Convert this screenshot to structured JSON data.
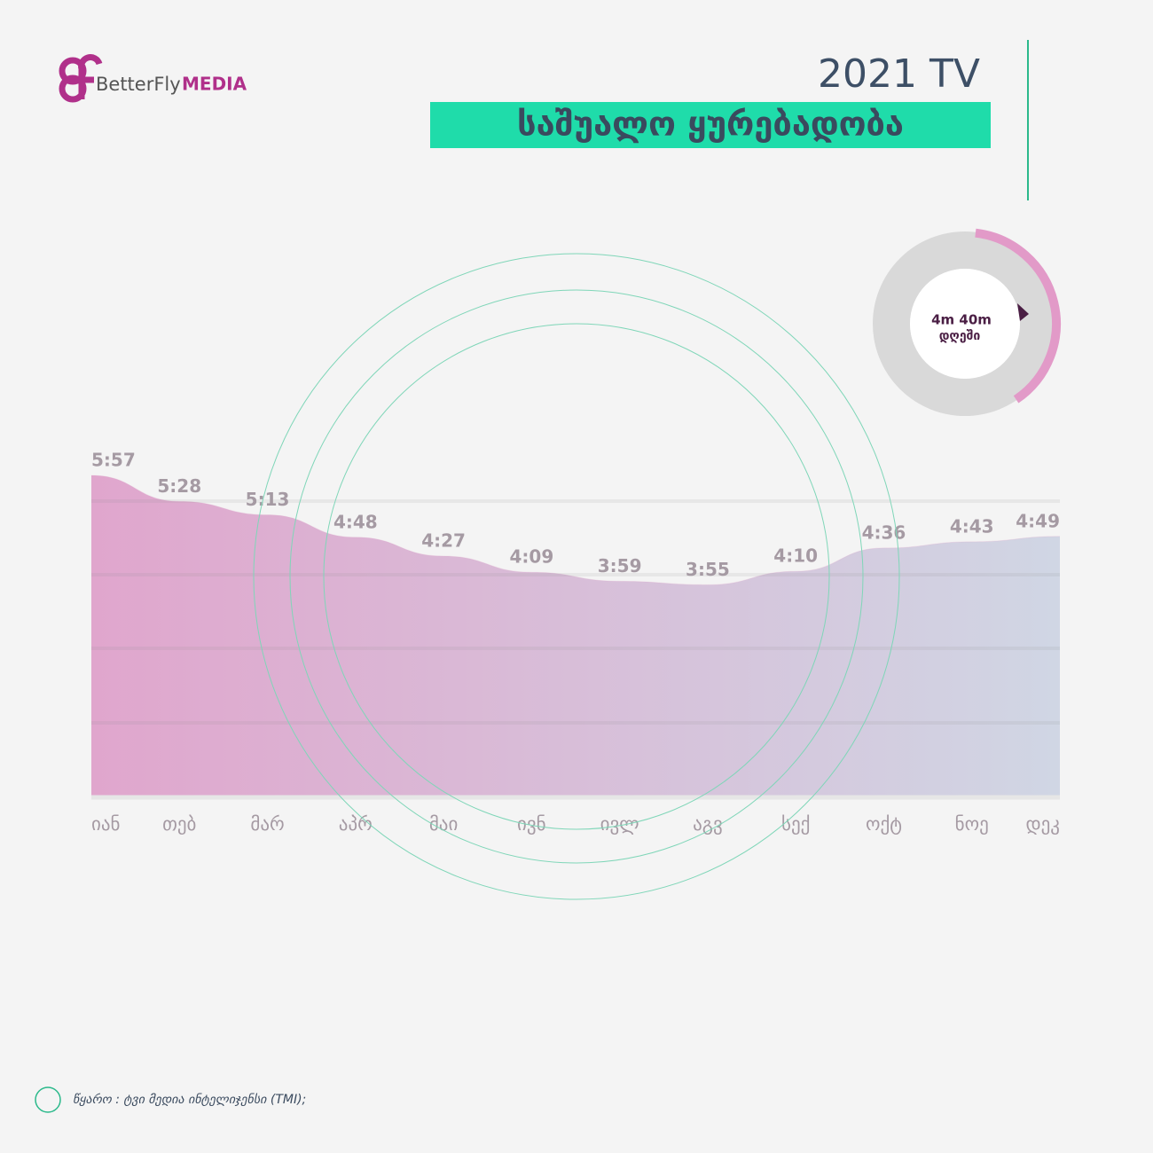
{
  "brand": {
    "name": "BetterFly",
    "suffix": "MEDIA"
  },
  "header": {
    "year_title": "2021 TV",
    "title": "საშუალო ყურებადობა"
  },
  "badge": {
    "value": "4m 40m",
    "unit": "დღეში"
  },
  "source": "წყარო : ტვი მედია ინტელიჯენსი (TMI);",
  "chart_data": {
    "type": "area",
    "categories": [
      "იან",
      "თებ",
      "მარ",
      "აპრ",
      "მაი",
      "ივნ",
      "ივლ",
      "აგვ",
      "სექ",
      "ოქტ",
      "ნოე",
      "დეკ"
    ],
    "values": [
      357,
      328,
      313,
      288,
      267,
      249,
      239,
      235,
      250,
      276,
      283,
      289
    ],
    "value_labels": [
      "5:57",
      "5:28",
      "5:13",
      "4:48",
      "4:27",
      "4:09",
      "3:59",
      "3:55",
      "4:10",
      "4:36",
      "4:43",
      "4:49"
    ],
    "ylim": [
      0,
      360
    ],
    "colors": [
      "#e0a6cd",
      "#d0d6e4"
    ]
  }
}
